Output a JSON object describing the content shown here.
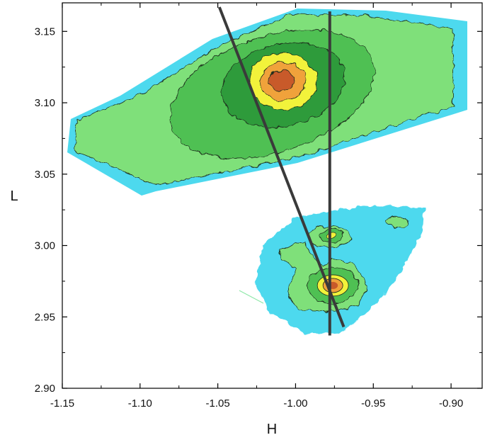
{
  "chart_data": {
    "type": "heatmap",
    "title": "",
    "xlabel": "H",
    "ylabel": "L",
    "xlim": [
      -1.15,
      -0.88
    ],
    "ylim": [
      2.9,
      3.17
    ],
    "x_ticks": [
      -1.15,
      -1.1,
      -1.05,
      -1.0,
      -0.95,
      -0.9
    ],
    "x_tick_labels": [
      "-1.15",
      "-1.10",
      "-1.05",
      "-1.00",
      "-0.95",
      "-0.90"
    ],
    "y_ticks": [
      2.9,
      2.95,
      3.0,
      3.05,
      3.1,
      3.15
    ],
    "y_tick_labels": [
      "2.90",
      "2.95",
      "3.00",
      "3.05",
      "3.10",
      "3.15"
    ],
    "grid": false,
    "colormap": [
      "#4dd9ee",
      "#7fe07a",
      "#4fc052",
      "#2f9b3b",
      "#f2f23a",
      "#f0a23a",
      "#c85a2a"
    ],
    "peaks": [
      {
        "h": -1.008,
        "l": 3.115,
        "level": "high",
        "note": "upper broad peak"
      },
      {
        "h": -0.976,
        "l": 2.972,
        "level": "high",
        "note": "lower main peak"
      },
      {
        "h": -0.977,
        "l": 3.007,
        "level": "medium",
        "note": "lower secondary peak"
      }
    ],
    "lines": [
      {
        "name": "scan-line-diagonal",
        "points": [
          [
            -1.049,
            3.167
          ],
          [
            -0.969,
            2.943
          ]
        ],
        "color": "#3a3a3a"
      },
      {
        "name": "scan-line-vertical",
        "points": [
          [
            -0.978,
            3.164
          ],
          [
            -0.978,
            2.937
          ]
        ],
        "color": "#3a3a3a"
      }
    ]
  }
}
